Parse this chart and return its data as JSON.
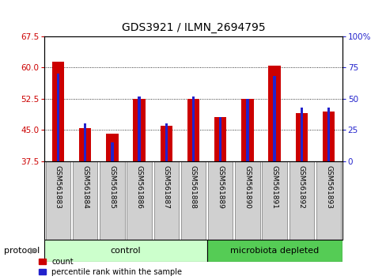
{
  "title": "GDS3921 / ILMN_2694795",
  "samples": [
    "GSM561883",
    "GSM561884",
    "GSM561885",
    "GSM561886",
    "GSM561887",
    "GSM561888",
    "GSM561889",
    "GSM561890",
    "GSM561891",
    "GSM561892",
    "GSM561893"
  ],
  "count_values": [
    61.5,
    45.5,
    44.0,
    52.5,
    46.0,
    52.5,
    48.0,
    52.5,
    60.5,
    49.0,
    49.5
  ],
  "percentile_values": [
    70,
    30,
    15,
    52,
    30,
    52,
    35,
    50,
    68,
    43,
    43
  ],
  "left_ylim": [
    37.5,
    67.5
  ],
  "left_yticks": [
    37.5,
    45.0,
    52.5,
    60.0,
    67.5
  ],
  "right_ylim": [
    0,
    100
  ],
  "right_yticks": [
    0,
    25,
    50,
    75,
    100
  ],
  "right_yticklabels": [
    "0",
    "25",
    "50",
    "75",
    "100%"
  ],
  "bar_color_red": "#cc0000",
  "bar_color_blue": "#2222cc",
  "control_samples_count": 6,
  "microbiota_samples_count": 5,
  "control_color": "#ccffcc",
  "microbiota_color": "#55cc55",
  "protocol_label": "protocol",
  "control_label": "control",
  "microbiota_label": "microbiota depleted",
  "legend_count": "count",
  "legend_pct": "percentile rank within the sample",
  "title_fontsize": 10,
  "tick_fontsize": 7.5,
  "bg_color": "#ffffff",
  "sample_box_color": "#d0d0d0",
  "sample_box_edge": "#888888"
}
